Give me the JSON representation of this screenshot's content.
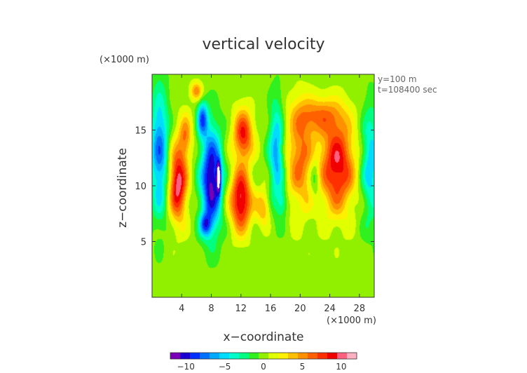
{
  "chart_data": {
    "type": "heatmap",
    "title": "vertical velocity",
    "xlabel": "x−coordinate",
    "ylabel": "z−coordinate",
    "x_unit_label": "(×1000 m)",
    "y_unit_label": "(×1000 m)",
    "annotations": [
      "y=100 m",
      "t=108400 sec"
    ],
    "xlim": [
      0,
      30
    ],
    "ylim": [
      0,
      20
    ],
    "x_ticks": [
      4,
      8,
      12,
      16,
      20,
      24,
      28
    ],
    "x_tick_labels": [
      "4",
      "8",
      "12",
      "16",
      "20",
      "24",
      "28"
    ],
    "y_ticks": [
      5,
      10,
      15
    ],
    "y_tick_labels": [
      "5",
      "10",
      "15"
    ],
    "colorbar": {
      "range": [
        -12,
        12
      ],
      "ticks": [
        -10,
        -5,
        0,
        5,
        10
      ],
      "tick_labels": [
        "−10",
        "−5",
        "0",
        "5",
        "10"
      ],
      "colors": [
        "#7a00b8",
        "#1a00d0",
        "#0030ff",
        "#0070ff",
        "#00aaff",
        "#00dcff",
        "#00ffc8",
        "#00ff80",
        "#30f020",
        "#90f000",
        "#e0ff00",
        "#fff000",
        "#ffc000",
        "#ff9000",
        "#ff6000",
        "#ff3000",
        "#f00000",
        "#ff6080",
        "#ffb0c0"
      ]
    },
    "background_value": 0,
    "features": [
      {
        "kind": "updraft",
        "x": 3.5,
        "z": 10.2,
        "sx": 1.2,
        "sz": 3.2,
        "w": 10.5
      },
      {
        "kind": "updraft",
        "x": 4.5,
        "z": 14.5,
        "sx": 0.9,
        "sz": 2.0,
        "w": 5.0
      },
      {
        "kind": "downdraft",
        "x": 8.0,
        "z": 10.5,
        "sx": 1.4,
        "sz": 4.5,
        "w": -11.5
      },
      {
        "kind": "downdraft",
        "x": 6.8,
        "z": 16.0,
        "sx": 0.7,
        "sz": 1.5,
        "w": -7.5
      },
      {
        "kind": "downdraft",
        "x": 7.2,
        "z": 6.5,
        "sx": 0.8,
        "sz": 1.0,
        "w": -6.0
      },
      {
        "kind": "updraft",
        "x": 12.0,
        "z": 8.7,
        "sx": 1.4,
        "sz": 2.7,
        "w": 10.5
      },
      {
        "kind": "updraft",
        "x": 12.3,
        "z": 14.6,
        "sx": 1.3,
        "sz": 2.2,
        "w": 8.5
      },
      {
        "kind": "downdraft",
        "x": 1.0,
        "z": 13.0,
        "sx": 1.2,
        "sz": 5.5,
        "w": -7.5
      },
      {
        "kind": "downdraft",
        "x": 16.8,
        "z": 13.0,
        "sx": 1.0,
        "sz": 4.5,
        "w": -6.5
      },
      {
        "kind": "updraft",
        "x": 20.0,
        "z": 12.5,
        "sx": 1.8,
        "sz": 4.5,
        "w": 6.0
      },
      {
        "kind": "updraft",
        "x": 25.0,
        "z": 11.8,
        "sx": 2.3,
        "sz": 4.0,
        "w": 9.5
      },
      {
        "kind": "updraft",
        "x": 22.5,
        "z": 16.3,
        "sx": 3.2,
        "sz": 1.6,
        "w": 5.0
      },
      {
        "kind": "downdraft",
        "x": 22.0,
        "z": 10.8,
        "sx": 0.7,
        "sz": 1.8,
        "w": -3.5
      },
      {
        "kind": "downdraft",
        "x": 29.5,
        "z": 12.0,
        "sx": 1.3,
        "sz": 5.0,
        "w": -5.5
      },
      {
        "kind": "downdraft",
        "x": 17.6,
        "z": 8.5,
        "sx": 0.7,
        "sz": 1.2,
        "w": -3.5
      },
      {
        "kind": "updraft",
        "x": 6.0,
        "z": 18.5,
        "sx": 0.8,
        "sz": 0.8,
        "w": 5.5
      },
      {
        "kind": "updraft",
        "x": 15.0,
        "z": 8.0,
        "sx": 0.9,
        "sz": 1.5,
        "w": 4.5
      }
    ],
    "extreme_core": {
      "x": 9.0,
      "z": 10.8,
      "value": -15
    }
  }
}
